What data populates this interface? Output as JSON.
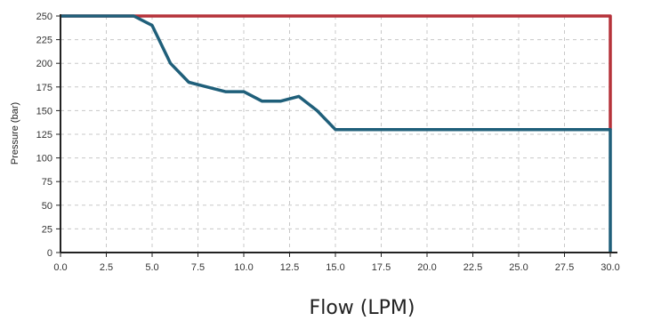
{
  "chart_data": {
    "type": "line",
    "xlabel": "Flow (LPM)",
    "ylabel": "Pressure (bar)",
    "xlim": [
      0,
      30
    ],
    "ylim": [
      0,
      250
    ],
    "grid": true,
    "x_ticks": [
      "0.0",
      "2.5",
      "5.0",
      "7.5",
      "10.0",
      "12.5",
      "15.0",
      "17.5",
      "20.0",
      "22.5",
      "25.0",
      "27.5",
      "30.0"
    ],
    "y_ticks": [
      "0",
      "25",
      "50",
      "75",
      "100",
      "125",
      "150",
      "175",
      "200",
      "225",
      "250"
    ],
    "series": [
      {
        "color": "#b5323a",
        "points": [
          [
            0,
            250
          ],
          [
            30,
            250
          ],
          [
            30,
            130
          ]
        ]
      },
      {
        "color": "#1f5f7a",
        "points": [
          [
            0,
            250
          ],
          [
            4,
            250
          ],
          [
            5,
            240
          ],
          [
            6,
            200
          ],
          [
            7,
            180
          ],
          [
            8,
            175
          ],
          [
            9,
            170
          ],
          [
            10,
            170
          ],
          [
            11,
            160
          ],
          [
            12,
            160
          ],
          [
            13,
            165
          ],
          [
            14,
            150
          ],
          [
            15,
            130
          ],
          [
            30,
            130
          ],
          [
            30,
            0
          ]
        ]
      }
    ]
  }
}
